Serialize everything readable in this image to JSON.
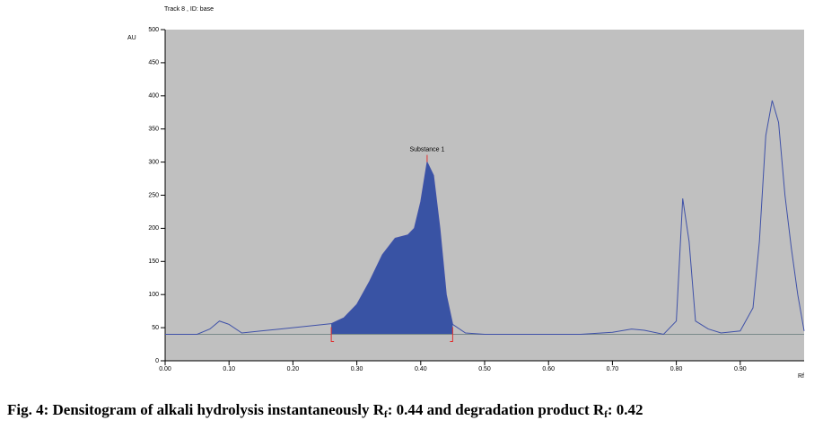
{
  "chart_data": {
    "type": "line",
    "title": "Track 8 , ID: base",
    "y_label": "AU",
    "x_label": "Rf",
    "annotation": {
      "text": "Substance 1",
      "x": 0.41
    },
    "caption": [
      "Fig. 4: Densitogram of alkali hydrolysis instantaneously R",
      "f",
      ": 0.44 and degradation product R",
      "f",
      ": 0.42"
    ],
    "x": [
      0.0,
      0.05,
      0.07,
      0.085,
      0.1,
      0.12,
      0.15,
      0.18,
      0.2,
      0.23,
      0.26,
      0.28,
      0.3,
      0.32,
      0.34,
      0.36,
      0.38,
      0.39,
      0.4,
      0.41,
      0.42,
      0.43,
      0.44,
      0.45,
      0.47,
      0.5,
      0.55,
      0.6,
      0.65,
      0.7,
      0.73,
      0.75,
      0.78,
      0.8,
      0.81,
      0.82,
      0.83,
      0.85,
      0.87,
      0.9,
      0.92,
      0.93,
      0.94,
      0.95,
      0.96,
      0.97,
      0.98,
      0.99,
      1.0
    ],
    "series": [
      {
        "color": "#3f51a8",
        "values": [
          40,
          40,
          48,
          60,
          55,
          42,
          45,
          48,
          50,
          53,
          56,
          65,
          85,
          120,
          160,
          185,
          190,
          200,
          240,
          300,
          280,
          200,
          100,
          55,
          42,
          40,
          40,
          40,
          40,
          43,
          48,
          46,
          40,
          60,
          245,
          180,
          60,
          48,
          42,
          45,
          80,
          180,
          340,
          393,
          360,
          250,
          170,
          100,
          45
        ]
      }
    ],
    "integration": {
      "start": 0.26,
      "end": 0.45,
      "baseline": 40,
      "color": "#3953a4",
      "marker_color": "#e03030"
    },
    "xlim": [
      0,
      1.0
    ],
    "ylim": [
      0,
      500
    ],
    "xticks": [
      {
        "value": 0,
        "label": "0.00"
      },
      0.1,
      0.2,
      0.3,
      0.4,
      0.5,
      0.6,
      0.7,
      0.8,
      0.9
    ],
    "yticks": [
      0,
      50,
      100,
      150,
      200,
      250,
      300,
      350,
      400,
      450,
      500
    ],
    "background": "#c0c0c0"
  }
}
